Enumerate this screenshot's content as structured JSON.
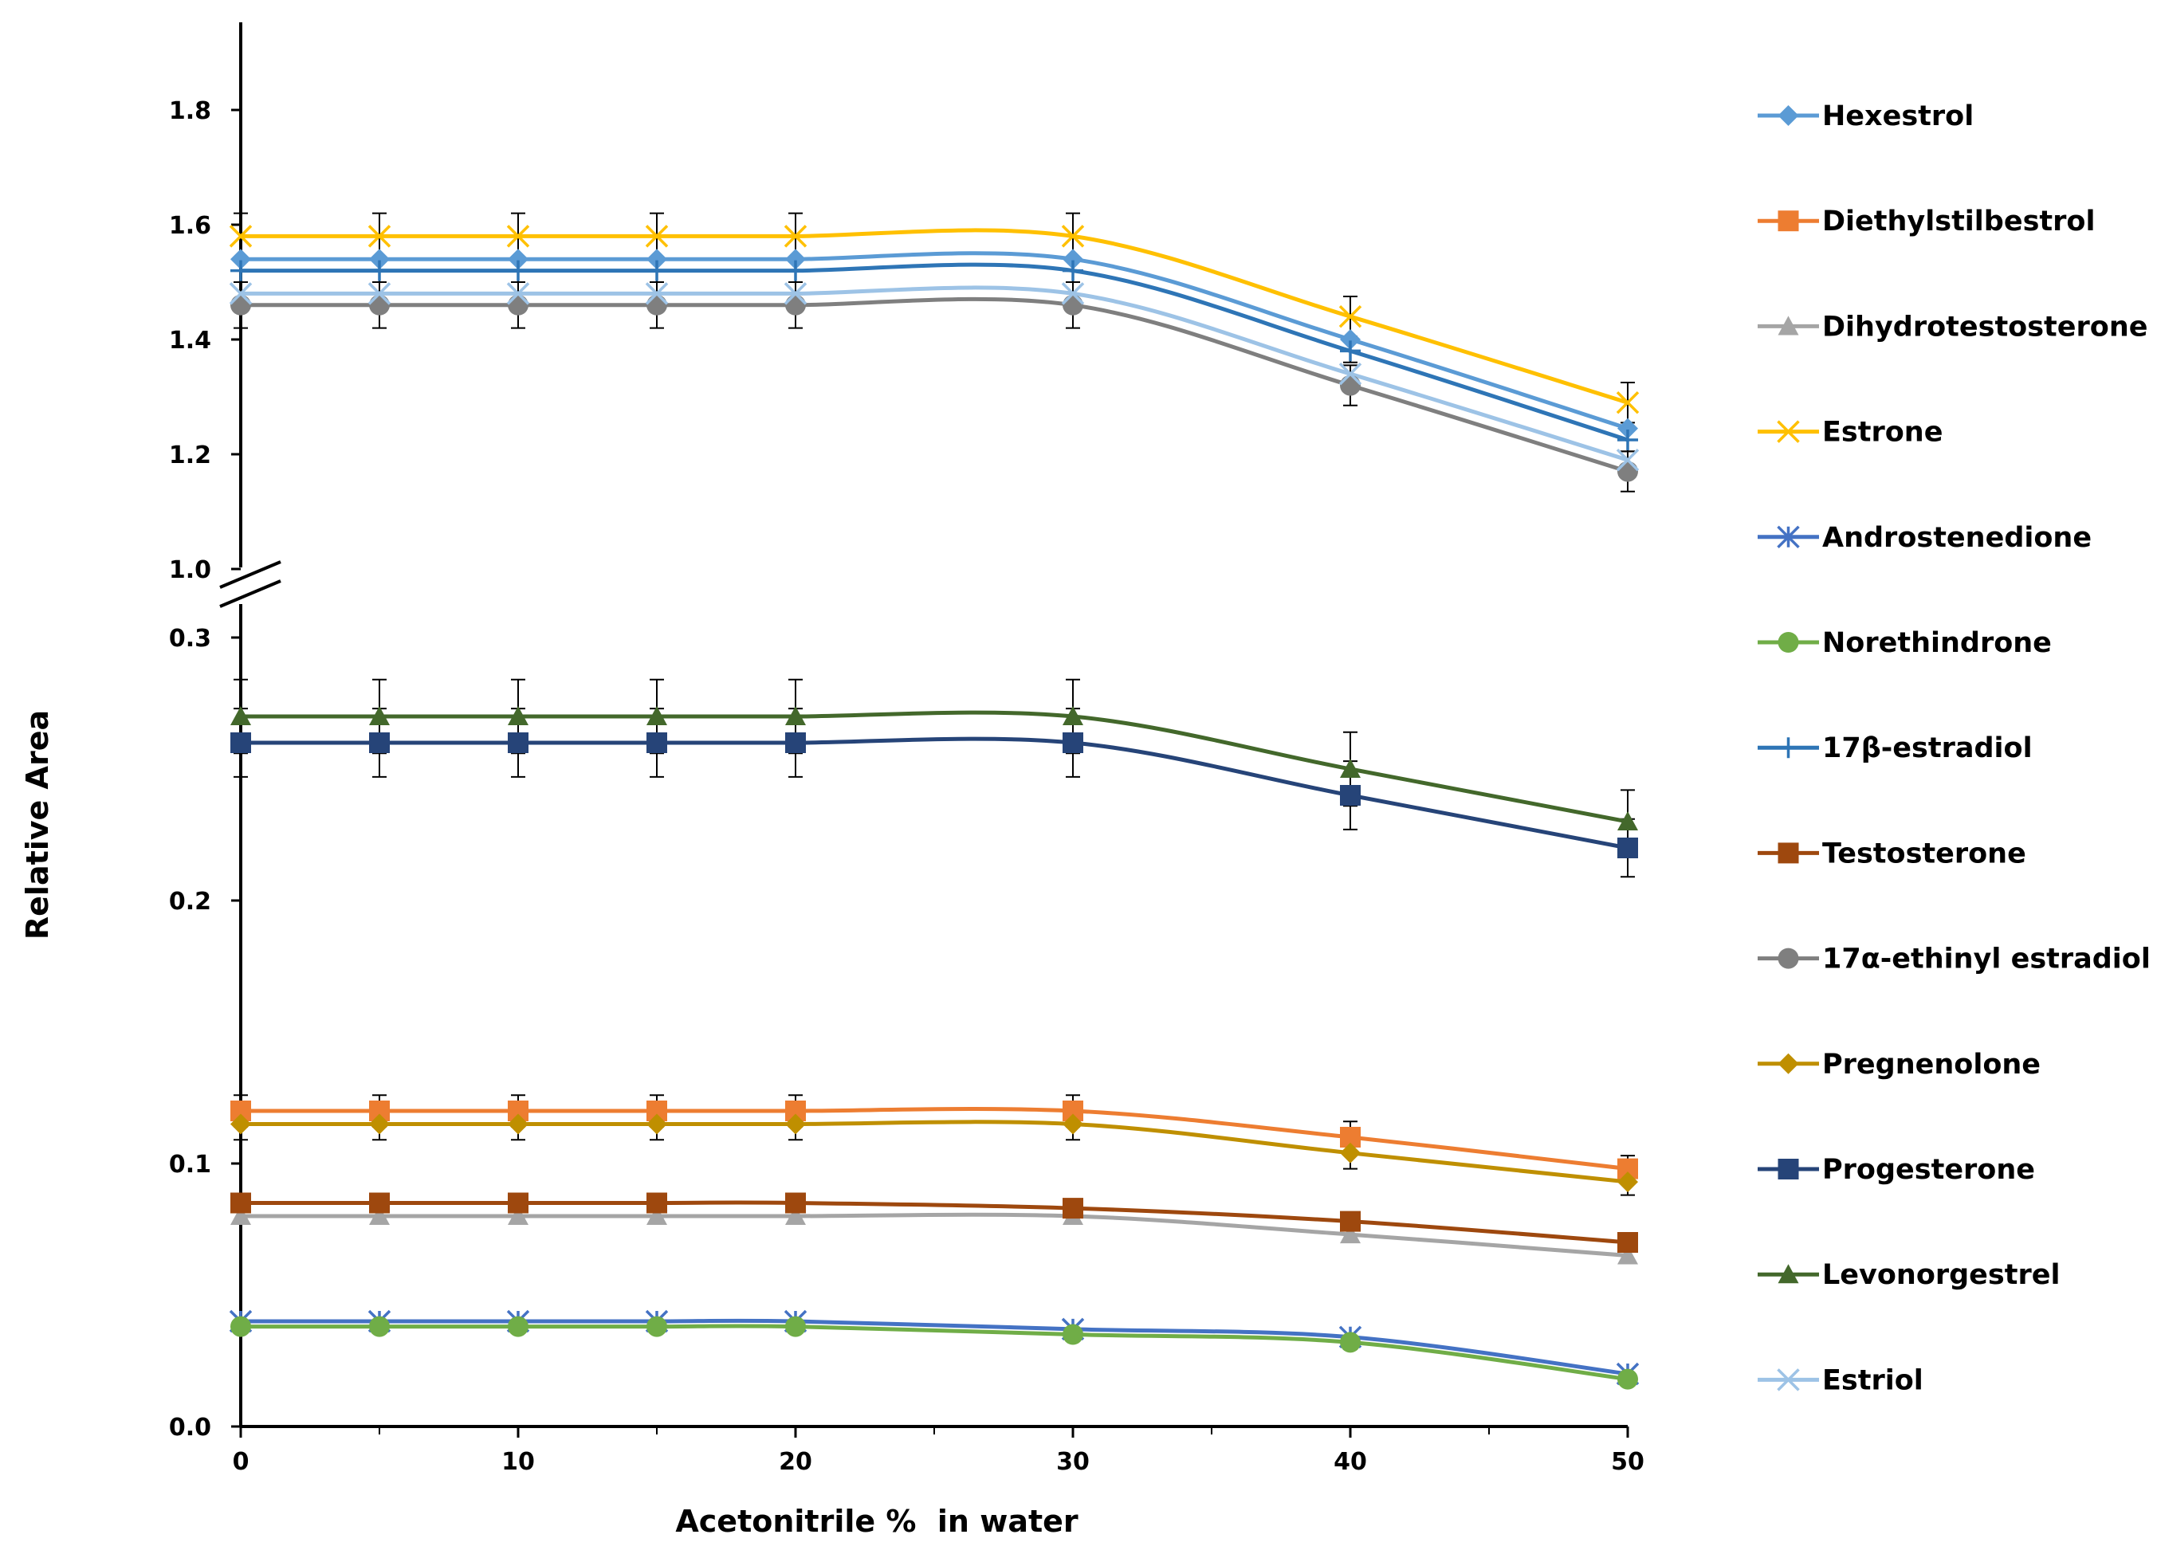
{
  "chart_data": {
    "type": "line",
    "xlabel": "Acetonitrile %  in water",
    "ylabel": "Relative Area",
    "x": [
      0,
      5,
      10,
      15,
      20,
      30,
      40,
      50
    ],
    "x_ticks": [
      0,
      10,
      20,
      30,
      40,
      50
    ],
    "y_axis_break": {
      "lower_range": [
        0,
        0.3
      ],
      "upper_range": [
        1.0,
        1.8
      ]
    },
    "y_ticks_lower": [
      "0.0",
      "0.1",
      "0.2",
      "0.3"
    ],
    "y_ticks_upper": [
      "1.0",
      "1.2",
      "1.4",
      "1.6",
      "1.8"
    ],
    "grid": false,
    "legend_position": "right",
    "series": [
      {
        "name": "Hexestrol",
        "color": "#5b9bd5",
        "marker": "diamond",
        "values": [
          1.54,
          1.54,
          1.54,
          1.54,
          1.54,
          1.54,
          1.4,
          1.245
        ]
      },
      {
        "name": "Diethylstilbestrol",
        "color": "#ed7d31",
        "marker": "square",
        "values": [
          0.12,
          0.12,
          0.12,
          0.12,
          0.12,
          0.12,
          0.11,
          0.098
        ]
      },
      {
        "name": "Dihydrotestosterone",
        "color": "#a5a5a5",
        "marker": "triangle",
        "values": [
          0.08,
          0.08,
          0.08,
          0.08,
          0.08,
          0.08,
          0.073,
          0.065
        ]
      },
      {
        "name": "Estrone",
        "color": "#ffc000",
        "marker": "x",
        "values": [
          1.58,
          1.58,
          1.58,
          1.58,
          1.58,
          1.58,
          1.44,
          1.29
        ]
      },
      {
        "name": "Androstenedione",
        "color": "#4472c4",
        "marker": "star",
        "values": [
          0.04,
          0.04,
          0.04,
          0.04,
          0.04,
          0.037,
          0.034,
          0.02
        ]
      },
      {
        "name": "Norethindrone",
        "color": "#70ad47",
        "marker": "circle",
        "values": [
          0.038,
          0.038,
          0.038,
          0.038,
          0.038,
          0.035,
          0.032,
          0.018
        ]
      },
      {
        "name": "17β-estradiol",
        "color": "#2e75b6",
        "marker": "plus",
        "values": [
          1.52,
          1.52,
          1.52,
          1.52,
          1.52,
          1.52,
          1.38,
          1.225
        ]
      },
      {
        "name": "Testosterone",
        "color": "#9e480e",
        "marker": "square",
        "values": [
          0.085,
          0.085,
          0.085,
          0.085,
          0.085,
          0.083,
          0.078,
          0.07
        ]
      },
      {
        "name": "17α-ethinyl estradiol",
        "color": "#7f7f7f",
        "marker": "circle",
        "values": [
          1.46,
          1.46,
          1.46,
          1.46,
          1.46,
          1.46,
          1.32,
          1.17
        ]
      },
      {
        "name": "Pregnenolone",
        "color": "#bf8f00",
        "marker": "diamond",
        "values": [
          0.115,
          0.115,
          0.115,
          0.115,
          0.115,
          0.115,
          0.104,
          0.093
        ]
      },
      {
        "name": "Progesterone",
        "color": "#264478",
        "marker": "square",
        "values": [
          0.26,
          0.26,
          0.26,
          0.26,
          0.26,
          0.26,
          0.24,
          0.22
        ]
      },
      {
        "name": "Levonorgestrel",
        "color": "#43682b",
        "marker": "triangle",
        "values": [
          0.27,
          0.27,
          0.27,
          0.27,
          0.27,
          0.27,
          0.25,
          0.23
        ]
      },
      {
        "name": "Estriol",
        "color": "#9dc3e6",
        "marker": "x",
        "values": [
          1.48,
          1.48,
          1.48,
          1.48,
          1.48,
          1.48,
          1.34,
          1.19
        ]
      }
    ],
    "error_bars": [
      {
        "series": "Estrone",
        "values": [
          0.04,
          0.04,
          0.04,
          0.04,
          0.04,
          0.04,
          0.035,
          0.035
        ]
      },
      {
        "series": "17α-ethinyl estradiol",
        "values": [
          0.04,
          0.04,
          0.04,
          0.04,
          0.04,
          0.04,
          0.035,
          0.035
        ]
      },
      {
        "series": "17β-estradiol",
        "values": [
          0.02,
          0.02,
          0.02,
          0.02,
          0.02,
          0.02,
          0.02,
          0.02
        ]
      },
      {
        "series": "Levonorgestrel",
        "values": [
          0.014,
          0.014,
          0.014,
          0.014,
          0.014,
          0.014,
          0.014,
          0.012
        ]
      },
      {
        "series": "Progesterone",
        "values": [
          0.013,
          0.013,
          0.013,
          0.013,
          0.013,
          0.013,
          0.013,
          0.011
        ]
      },
      {
        "series": "Diethylstilbestrol",
        "values": [
          0.006,
          0.006,
          0.006,
          0.006,
          0.006,
          0.006,
          0.006,
          0.005
        ]
      },
      {
        "series": "Pregnenolone",
        "values": [
          0.006,
          0.006,
          0.006,
          0.006,
          0.006,
          0.006,
          0.006,
          0.005
        ]
      }
    ]
  }
}
